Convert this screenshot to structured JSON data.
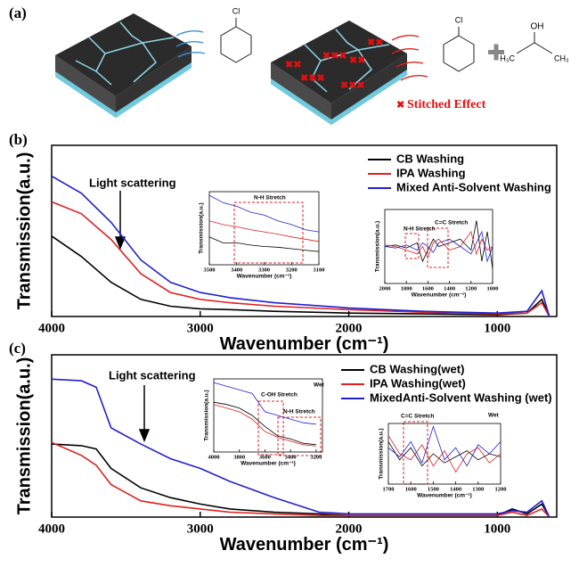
{
  "panel_a": {
    "label": "(a)",
    "molecules": [
      "Cl",
      "Cl",
      "OH",
      "H₃C",
      "CH₃"
    ],
    "annotation": "Stitched Effect"
  },
  "chart_data": [
    {
      "type": "line",
      "panel_label": "(b)",
      "x_label": "Wavenumber (cm⁻¹)",
      "y_label": "Transmission(a.u.)",
      "xlim": [
        4000,
        600
      ],
      "ylim": [
        0,
        1
      ],
      "xticks": [
        4000,
        3000,
        2000,
        1000
      ],
      "x": [
        4000,
        3800,
        3600,
        3400,
        3200,
        3000,
        2800,
        2500,
        2000,
        1500,
        1000,
        800,
        700,
        650
      ],
      "series": [
        {
          "name": "CB Washing",
          "color": "#000000",
          "values": [
            0.47,
            0.35,
            0.2,
            0.1,
            0.06,
            0.045,
            0.04,
            0.03,
            0.02,
            0.015,
            0.01,
            0.02,
            0.1,
            0.0
          ]
        },
        {
          "name": "IPA Washing",
          "color": "#e02020",
          "values": [
            0.67,
            0.6,
            0.45,
            0.25,
            0.14,
            0.1,
            0.08,
            0.06,
            0.04,
            0.025,
            0.015,
            0.02,
            0.08,
            0.0
          ]
        },
        {
          "name": "Mixed Anti-Solvent Washing",
          "color": "#2020d0",
          "values": [
            0.82,
            0.72,
            0.55,
            0.33,
            0.2,
            0.14,
            0.11,
            0.08,
            0.05,
            0.03,
            0.02,
            0.03,
            0.15,
            0.0
          ]
        }
      ],
      "annotations": [
        "Light scattering"
      ]
    },
    {
      "type": "line",
      "x_label": "Wavenumber (cm⁻¹)",
      "y_label": "Transmission(a.u.)",
      "xlim": [
        3500,
        3100
      ],
      "ylim": [
        0,
        1
      ],
      "xticks": [
        3500,
        3400,
        3300,
        3200,
        3100
      ],
      "x": [
        3500,
        3450,
        3400,
        3350,
        3300,
        3250,
        3200,
        3150,
        3100
      ],
      "series": [
        {
          "color": "#000000",
          "values": [
            0.38,
            0.3,
            0.3,
            0.27,
            0.25,
            0.24,
            0.22,
            0.2,
            0.18
          ]
        },
        {
          "color": "#e02020",
          "values": [
            0.6,
            0.55,
            0.52,
            0.48,
            0.45,
            0.42,
            0.38,
            0.35,
            0.32
          ]
        },
        {
          "color": "#2020d0",
          "values": [
            0.95,
            0.85,
            0.8,
            0.72,
            0.68,
            0.6,
            0.55,
            0.48,
            0.45
          ]
        }
      ],
      "annotations": [
        "N-H Stretch"
      ]
    },
    {
      "type": "line",
      "x_label": "Wavenumber (cm⁻¹)",
      "y_label": "Transmission(a.u.)",
      "xlim": [
        2000,
        1000
      ],
      "ylim": [
        0,
        1
      ],
      "xticks": [
        2000,
        1800,
        1600,
        1400,
        1200,
        1000
      ],
      "x": [
        2000,
        1900,
        1800,
        1700,
        1650,
        1600,
        1550,
        1500,
        1400,
        1300,
        1200,
        1150,
        1100,
        1050,
        1000
      ],
      "series": [
        {
          "color": "#000000",
          "values": [
            0.5,
            0.52,
            0.48,
            0.55,
            0.3,
            0.45,
            0.6,
            0.5,
            0.55,
            0.6,
            0.45,
            0.85,
            0.3,
            0.7,
            0.2
          ]
        },
        {
          "color": "#e02020",
          "values": [
            0.52,
            0.5,
            0.45,
            0.4,
            0.5,
            0.35,
            0.55,
            0.6,
            0.45,
            0.5,
            0.7,
            0.4,
            0.6,
            0.45,
            0.5
          ]
        },
        {
          "color": "#2020d0",
          "values": [
            0.5,
            0.48,
            0.52,
            0.45,
            0.55,
            0.5,
            0.42,
            0.55,
            0.6,
            0.5,
            0.4,
            0.55,
            0.7,
            0.3,
            0.5
          ]
        }
      ],
      "annotations": [
        "N-H Stretch",
        "C=C Stretch"
      ]
    },
    {
      "type": "line",
      "panel_label": "(c)",
      "x_label": "Wavenumber (cm⁻¹)",
      "y_label": "Transmission(a.u.)",
      "xlim": [
        4000,
        600
      ],
      "ylim": [
        0,
        1
      ],
      "xticks": [
        4000,
        3000,
        2000,
        1000
      ],
      "x": [
        4000,
        3800,
        3700,
        3600,
        3400,
        3200,
        3000,
        2800,
        2500,
        2200,
        2000,
        1500,
        1000,
        900,
        800,
        700,
        650
      ],
      "series": [
        {
          "name": "CB Washing(wet)",
          "color": "#000000",
          "values": [
            0.45,
            0.44,
            0.42,
            0.3,
            0.18,
            0.12,
            0.08,
            0.05,
            0.03,
            0.02,
            0.01,
            0.01,
            0.01,
            0.05,
            0.02,
            0.08,
            0.0
          ]
        },
        {
          "name": "IPA Washing(wet)",
          "color": "#e02020",
          "values": [
            0.46,
            0.38,
            0.32,
            0.2,
            0.1,
            0.07,
            0.05,
            0.03,
            0.02,
            0.01,
            0.01,
            0.01,
            0.01,
            0.03,
            0.01,
            0.05,
            0.0
          ]
        },
        {
          "name": "MixedAnti-Solvent Washing (wet)",
          "color": "#2020d0",
          "values": [
            0.85,
            0.84,
            0.8,
            0.55,
            0.45,
            0.36,
            0.3,
            0.22,
            0.12,
            0.03,
            0.02,
            0.02,
            0.02,
            0.04,
            0.03,
            0.1,
            0.0
          ]
        }
      ],
      "annotations": [
        "Light scattering"
      ]
    },
    {
      "type": "line",
      "x_label": "Wavenumber (cm⁻¹)",
      "y_label": "Transmission(a.u.)",
      "xlim": [
        4000,
        3150
      ],
      "ylim": [
        0,
        1
      ],
      "xticks": [
        4000,
        3800,
        3600,
        3400,
        3200
      ],
      "x": [
        4000,
        3900,
        3800,
        3700,
        3600,
        3500,
        3400,
        3300,
        3200
      ],
      "series": [
        {
          "color": "#000000",
          "values": [
            0.68,
            0.65,
            0.6,
            0.5,
            0.35,
            0.22,
            0.18,
            0.12,
            0.1
          ]
        },
        {
          "color": "#e02020",
          "values": [
            0.65,
            0.6,
            0.55,
            0.45,
            0.28,
            0.2,
            0.15,
            0.1,
            0.08
          ]
        },
        {
          "color": "#2020d0",
          "values": [
            0.95,
            0.9,
            0.85,
            0.8,
            0.55,
            0.5,
            0.45,
            0.4,
            0.38
          ]
        }
      ],
      "annotations": [
        "C-OH Stretch",
        "N-H Stretch",
        "Wet"
      ]
    },
    {
      "type": "line",
      "x_label": "Wavenumber (cm⁻¹)",
      "y_label": "Transmission(a.u.)",
      "xlim": [
        1700,
        1200
      ],
      "ylim": [
        0,
        1
      ],
      "xticks": [
        1700,
        1600,
        1500,
        1400,
        1300,
        1200
      ],
      "x": [
        1700,
        1650,
        1600,
        1550,
        1500,
        1450,
        1400,
        1350,
        1300,
        1250,
        1200
      ],
      "series": [
        {
          "color": "#000000",
          "values": [
            0.7,
            0.4,
            0.6,
            0.3,
            0.5,
            0.35,
            0.45,
            0.55,
            0.4,
            0.5,
            0.45
          ]
        },
        {
          "color": "#e02020",
          "values": [
            0.8,
            0.5,
            0.4,
            0.65,
            0.3,
            0.55,
            0.2,
            0.5,
            0.6,
            0.35,
            0.5
          ]
        },
        {
          "color": "#2020d0",
          "values": [
            0.6,
            0.45,
            0.7,
            0.35,
            0.95,
            0.4,
            0.6,
            0.3,
            0.65,
            0.5,
            0.7
          ]
        }
      ],
      "annotations": [
        "C=C Stretch",
        "Wet"
      ]
    }
  ]
}
